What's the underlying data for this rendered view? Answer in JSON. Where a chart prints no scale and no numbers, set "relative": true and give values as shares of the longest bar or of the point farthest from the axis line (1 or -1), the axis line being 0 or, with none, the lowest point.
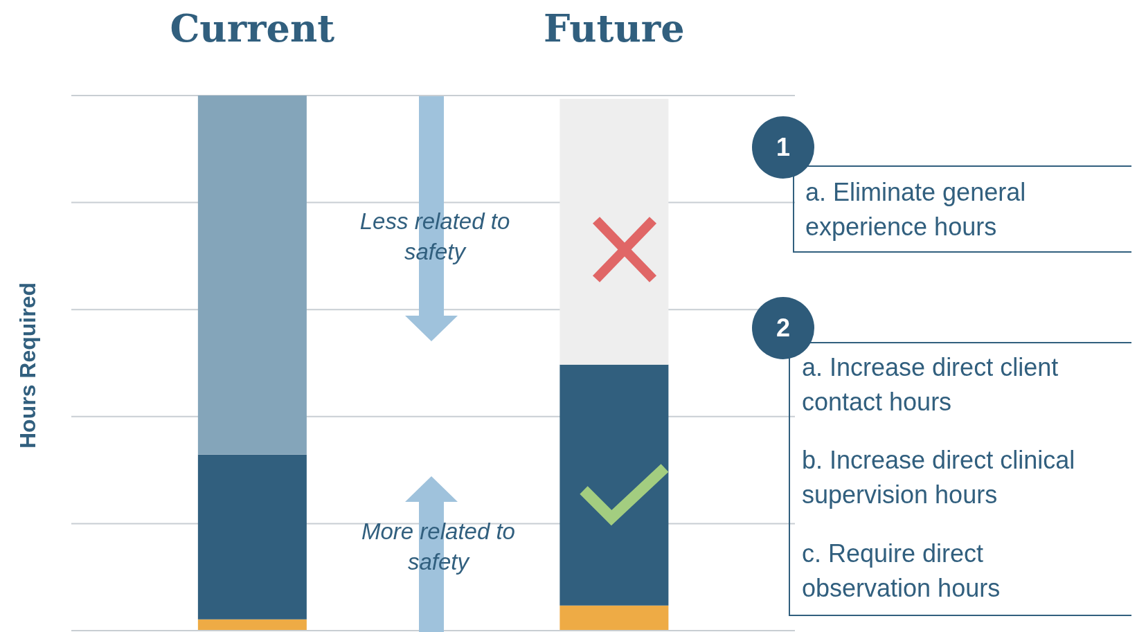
{
  "chart_data": {
    "type": "bar",
    "stacked": true,
    "relative": true,
    "ylabel": "Hours Required",
    "categories": [
      "Current",
      "Future"
    ],
    "series": [
      {
        "color": "#eeab45",
        "values": [
          0.021,
          0.047
        ]
      },
      {
        "color": "#315f7e",
        "values": [
          0.308,
          0.45
        ]
      },
      {
        "color": "#84a5ba",
        "colors": [
          "#84a5ba",
          "#eeeeee"
        ],
        "values": [
          0.671,
          0.497
        ]
      }
    ],
    "grid": "y",
    "legend": false,
    "annotations": [
      "Less related to safety",
      "More related to safety",
      "1",
      "a. Eliminate general experience hours",
      "2",
      "a. Increase direct client contact hours",
      "b. Increase direct clinical supervision hours",
      "c. Require direct observation hours"
    ]
  }
}
